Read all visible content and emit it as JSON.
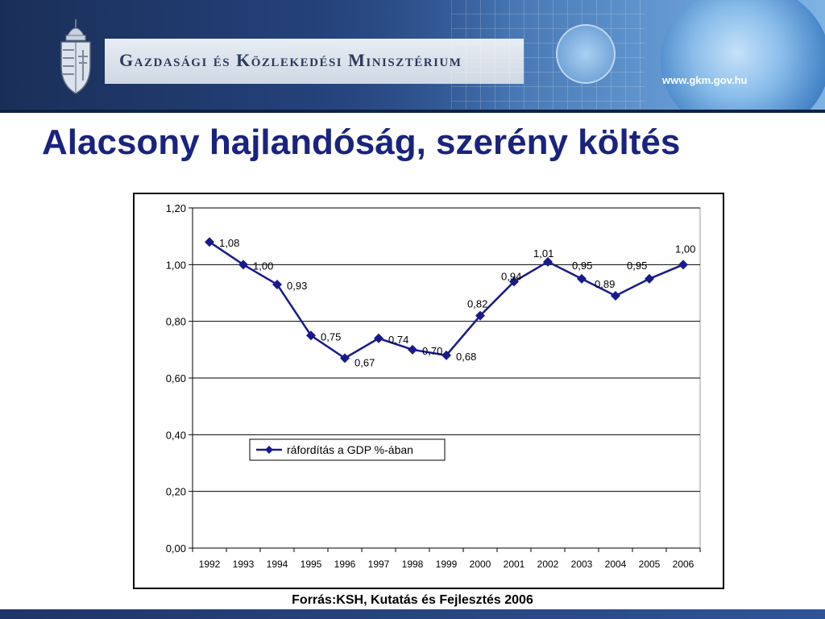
{
  "header": {
    "ministry_name": "Gazdasági és Közlekedési Minisztérium",
    "url": "www.gkm.gov.hu"
  },
  "slide": {
    "title": "Alacsony hajlandóság, szerény költés",
    "source": "Forrás:KSH, Kutatás és Fejlesztés 2006"
  },
  "colors": {
    "title": "#1a237e",
    "series": "#1a1a8c",
    "banner_dark": "#1d3360"
  },
  "icons": [
    "hungarian-coat-of-arms-icon",
    "globe-icon"
  ],
  "chart_data": {
    "type": "line",
    "categories": [
      "1992",
      "1993",
      "1994",
      "1995",
      "1996",
      "1997",
      "1998",
      "1999",
      "2000",
      "2001",
      "2002",
      "2003",
      "2004",
      "2005",
      "2006"
    ],
    "series": [
      {
        "name": "ráfordítás a GDP %-ában",
        "values": [
          1.08,
          1.0,
          0.93,
          0.75,
          0.67,
          0.74,
          0.7,
          0.68,
          0.82,
          0.94,
          1.01,
          0.95,
          0.89,
          0.95,
          1.0
        ],
        "labels": [
          "1,08",
          "1,00",
          "0,93",
          "0,75",
          "0,67",
          "0,74",
          "0,70",
          "0,68",
          "0,82",
          "0,94",
          "1,01",
          "0,95",
          "0,89",
          "0,95",
          "1,00"
        ]
      }
    ],
    "ylim": [
      0,
      1.2
    ],
    "yticks": [
      0,
      0.2,
      0.4,
      0.6,
      0.8,
      1.0,
      1.2
    ],
    "ytick_labels": [
      "0,00",
      "0,20",
      "0,40",
      "0,60",
      "0,80",
      "1,00",
      "1,20"
    ],
    "grid": true,
    "legend_position": "middle-left",
    "marker": "diamond"
  }
}
